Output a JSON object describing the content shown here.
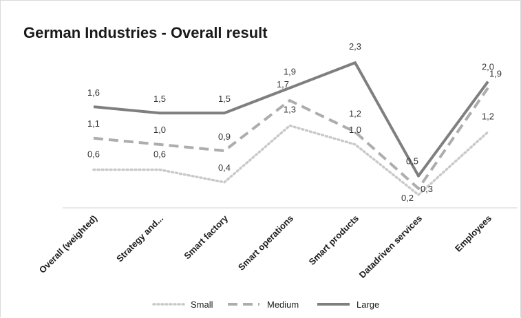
{
  "chart_data": {
    "type": "line",
    "title": "German Industries - Overall result",
    "xlabel": "",
    "ylabel": "",
    "ylim": [
      0,
      2.7
    ],
    "grid": false,
    "legend_position": "bottom",
    "categories": [
      "Overall (weighted)",
      "Strategy and...",
      "Smart factory",
      "Smart operations",
      "Smart products",
      "Datadriven services",
      "Employees"
    ],
    "series": [
      {
        "name": "Small",
        "values": [
          0.6,
          0.6,
          0.4,
          1.3,
          1.0,
          0.2,
          1.2
        ],
        "labels": [
          "0,6",
          "0,6",
          "0,4",
          "1,3",
          "1,0",
          "0,2",
          "1,2"
        ],
        "color": "#c9c9c9",
        "style": "dotted"
      },
      {
        "name": "Medium",
        "values": [
          1.1,
          1.0,
          0.9,
          1.7,
          1.2,
          0.3,
          1.9
        ],
        "labels": [
          "1,1",
          "1,0",
          "0,9",
          "1,7",
          "1,2",
          "0,3",
          "1,9"
        ],
        "color": "#adadad",
        "style": "dashed"
      },
      {
        "name": "Large",
        "values": [
          1.6,
          1.5,
          1.5,
          1.9,
          2.3,
          0.5,
          2.0
        ],
        "labels": [
          "1,6",
          "1,5",
          "1,5",
          "1,9",
          "2,3",
          "0,5",
          "2,0"
        ],
        "color": "#7f7f7f",
        "style": "solid"
      }
    ]
  }
}
